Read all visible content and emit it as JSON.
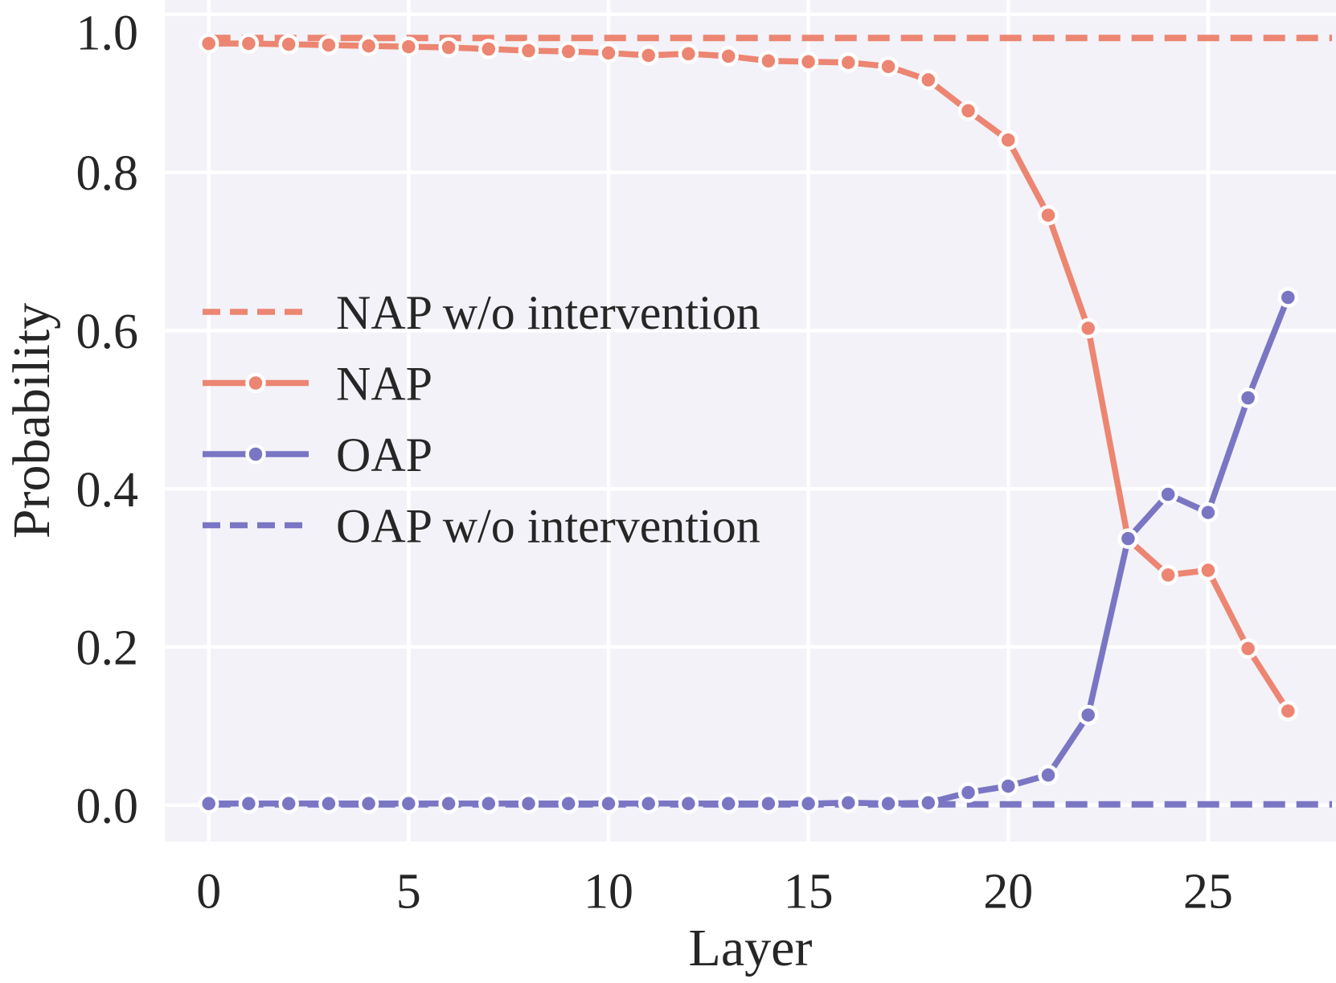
{
  "chart_data": {
    "type": "line",
    "title": "",
    "xlabel": "Layer",
    "ylabel": "Probability",
    "x": [
      0,
      1,
      2,
      3,
      4,
      5,
      6,
      7,
      8,
      9,
      10,
      11,
      12,
      13,
      14,
      15,
      16,
      17,
      18,
      19,
      20,
      21,
      22,
      23,
      24,
      25,
      26,
      27
    ],
    "series": [
      {
        "name": "NAP w/o intervention",
        "style": "dashed",
        "color": "#EC8571",
        "values": [
          0.97,
          0.97,
          0.97,
          0.97,
          0.97,
          0.97,
          0.97,
          0.97,
          0.97,
          0.97,
          0.97,
          0.97,
          0.97,
          0.97,
          0.97,
          0.97,
          0.97,
          0.97,
          0.97,
          0.97,
          0.97,
          0.97,
          0.97,
          0.97,
          0.97,
          0.97,
          0.97,
          0.97
        ]
      },
      {
        "name": "NAP",
        "style": "solid-marker",
        "color": "#EC8571",
        "values": [
          0.963,
          0.963,
          0.962,
          0.961,
          0.96,
          0.959,
          0.958,
          0.956,
          0.954,
          0.953,
          0.951,
          0.948,
          0.95,
          0.947,
          0.941,
          0.94,
          0.939,
          0.934,
          0.917,
          0.878,
          0.841,
          0.746,
          0.603,
          0.336,
          0.291,
          0.297,
          0.198,
          0.119
        ]
      },
      {
        "name": "OAP",
        "style": "solid-marker",
        "color": "#7A76C4",
        "values": [
          0.002,
          0.002,
          0.002,
          0.002,
          0.002,
          0.002,
          0.002,
          0.002,
          0.002,
          0.002,
          0.002,
          0.002,
          0.002,
          0.002,
          0.002,
          0.002,
          0.003,
          0.002,
          0.003,
          0.016,
          0.024,
          0.038,
          0.114,
          0.337,
          0.393,
          0.37,
          0.515,
          0.642
        ]
      },
      {
        "name": "OAP w/o intervention",
        "style": "dashed",
        "color": "#7A76C4",
        "values": [
          0.001,
          0.001,
          0.001,
          0.001,
          0.001,
          0.001,
          0.001,
          0.001,
          0.001,
          0.001,
          0.001,
          0.001,
          0.001,
          0.001,
          0.001,
          0.001,
          0.001,
          0.001,
          0.001,
          0.001,
          0.001,
          0.001,
          0.001,
          0.001,
          0.001,
          0.001,
          0.001,
          0.001
        ]
      }
    ],
    "x_ticks": [
      0,
      5,
      10,
      15,
      20,
      25
    ],
    "y_ticks": [
      0.0,
      0.2,
      0.4,
      0.6,
      0.8,
      1.0
    ],
    "xlim": [
      -1.1,
      28.2
    ],
    "ylim": [
      -0.046,
      1.018
    ],
    "grid": true,
    "legend_position": "center-left",
    "colors": {
      "plot_background": "#F3F2F8",
      "grid_line": "#FFFFFF",
      "text": "#262626",
      "salmon": "#EC8571",
      "purple": "#7A76C4"
    }
  }
}
